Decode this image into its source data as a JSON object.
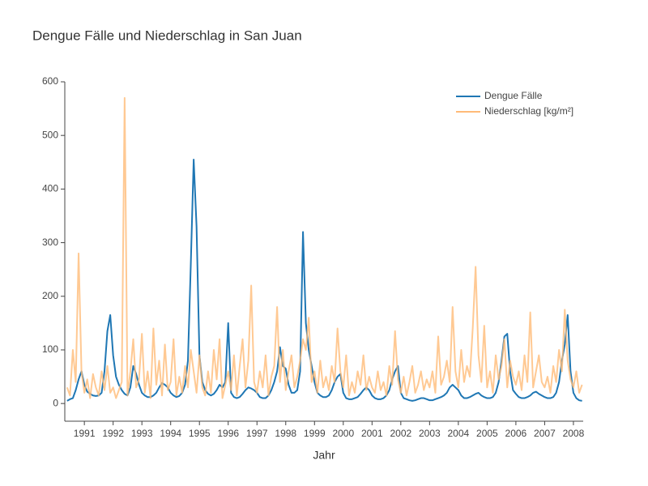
{
  "chart_data": {
    "type": "line",
    "title": "Dengue Fälle und Niederschlag in San Juan",
    "x_label": "Jahr",
    "xlim": [
      1990.32,
      2008.34
    ],
    "xticks": [
      1991,
      1992,
      1993,
      1994,
      1995,
      1996,
      1997,
      1998,
      1999,
      2000,
      2001,
      2002,
      2003,
      2004,
      2005,
      2006,
      2007,
      2008
    ],
    "ylim": [
      -33,
      600
    ],
    "yticks": [
      0,
      100,
      200,
      300,
      400,
      500,
      600
    ],
    "grid": false,
    "legend": "top-right",
    "x": [
      1990.4,
      1990.5,
      1990.6,
      1990.7,
      1990.8,
      1990.9,
      1991.0,
      1991.1,
      1991.2,
      1991.3,
      1991.4,
      1991.5,
      1991.6,
      1991.7,
      1991.8,
      1991.9,
      1992.0,
      1992.1,
      1992.2,
      1992.3,
      1992.4,
      1992.5,
      1992.6,
      1992.7,
      1992.8,
      1992.9,
      1993.0,
      1993.1,
      1993.2,
      1993.3,
      1993.4,
      1993.5,
      1993.6,
      1993.7,
      1993.8,
      1993.9,
      1994.0,
      1994.1,
      1994.2,
      1994.3,
      1994.4,
      1994.5,
      1994.6,
      1994.7,
      1994.8,
      1994.9,
      1995.0,
      1995.1,
      1995.2,
      1995.3,
      1995.4,
      1995.5,
      1995.6,
      1995.7,
      1995.8,
      1995.9,
      1996.0,
      1996.1,
      1996.2,
      1996.3,
      1996.4,
      1996.5,
      1996.6,
      1996.7,
      1996.8,
      1996.9,
      1997.0,
      1997.1,
      1997.2,
      1997.3,
      1997.4,
      1997.5,
      1997.6,
      1997.7,
      1997.8,
      1997.9,
      1998.0,
      1998.1,
      1998.2,
      1998.3,
      1998.4,
      1998.5,
      1998.6,
      1998.7,
      1998.8,
      1998.9,
      1999.0,
      1999.1,
      1999.2,
      1999.3,
      1999.4,
      1999.5,
      1999.6,
      1999.7,
      1999.8,
      1999.9,
      2000.0,
      2000.1,
      2000.2,
      2000.3,
      2000.4,
      2000.5,
      2000.6,
      2000.7,
      2000.8,
      2000.9,
      2001.0,
      2001.1,
      2001.2,
      2001.3,
      2001.4,
      2001.5,
      2001.6,
      2001.7,
      2001.8,
      2001.9,
      2002.0,
      2002.1,
      2002.2,
      2002.3,
      2002.4,
      2002.5,
      2002.6,
      2002.7,
      2002.8,
      2002.9,
      2003.0,
      2003.1,
      2003.2,
      2003.3,
      2003.4,
      2003.5,
      2003.6,
      2003.7,
      2003.8,
      2003.9,
      2004.0,
      2004.1,
      2004.2,
      2004.3,
      2004.4,
      2004.5,
      2004.6,
      2004.7,
      2004.8,
      2004.9,
      2005.0,
      2005.1,
      2005.2,
      2005.3,
      2005.4,
      2005.5,
      2005.6,
      2005.7,
      2005.8,
      2005.9,
      2006.0,
      2006.1,
      2006.2,
      2006.3,
      2006.4,
      2006.5,
      2006.6,
      2006.7,
      2006.8,
      2006.9,
      2007.0,
      2007.1,
      2007.2,
      2007.3,
      2007.4,
      2007.5,
      2007.6,
      2007.7,
      2007.8,
      2007.9,
      2008.0,
      2008.1,
      2008.2,
      2008.3
    ],
    "series": [
      {
        "name": "Dengue Fälle",
        "color": "#1f77b4",
        "values": [
          5,
          8,
          10,
          25,
          45,
          60,
          35,
          22,
          18,
          15,
          14,
          15,
          20,
          60,
          135,
          165,
          90,
          50,
          35,
          25,
          18,
          15,
          30,
          70,
          55,
          35,
          20,
          15,
          12,
          12,
          15,
          20,
          30,
          38,
          35,
          30,
          20,
          15,
          12,
          14,
          20,
          35,
          80,
          260,
          455,
          330,
          90,
          40,
          25,
          18,
          15,
          18,
          25,
          35,
          30,
          40,
          150,
          20,
          12,
          10,
          12,
          18,
          25,
          30,
          28,
          25,
          20,
          12,
          10,
          10,
          15,
          25,
          40,
          60,
          105,
          70,
          65,
          35,
          20,
          20,
          25,
          60,
          320,
          150,
          100,
          70,
          40,
          20,
          15,
          12,
          12,
          15,
          25,
          40,
          50,
          55,
          20,
          10,
          8,
          8,
          10,
          12,
          18,
          25,
          30,
          25,
          15,
          10,
          8,
          8,
          10,
          15,
          25,
          45,
          60,
          70,
          20,
          10,
          8,
          6,
          5,
          6,
          8,
          10,
          10,
          8,
          6,
          6,
          8,
          10,
          12,
          15,
          20,
          30,
          35,
          30,
          25,
          15,
          10,
          10,
          12,
          15,
          18,
          20,
          15,
          12,
          10,
          10,
          12,
          20,
          40,
          80,
          125,
          130,
          60,
          25,
          18,
          12,
          10,
          10,
          12,
          15,
          20,
          22,
          18,
          15,
          12,
          10,
          10,
          12,
          20,
          40,
          80,
          110,
          165,
          60,
          20,
          10,
          6,
          5
        ]
      },
      {
        "name": "Niederschlag [kg/m²]",
        "color": "#ffbb78",
        "values": [
          30,
          15,
          100,
          40,
          280,
          60,
          20,
          45,
          10,
          55,
          30,
          15,
          60,
          25,
          70,
          20,
          30,
          10,
          25,
          40,
          570,
          15,
          60,
          120,
          30,
          45,
          130,
          20,
          60,
          10,
          140,
          35,
          80,
          15,
          110,
          25,
          40,
          120,
          15,
          50,
          20,
          70,
          30,
          100,
          60,
          20,
          90,
          30,
          15,
          60,
          20,
          100,
          45,
          120,
          10,
          35,
          60,
          25,
          90,
          15,
          70,
          120,
          30,
          80,
          220,
          40,
          20,
          60,
          30,
          90,
          15,
          50,
          70,
          180,
          40,
          100,
          25,
          60,
          90,
          30,
          50,
          80,
          120,
          100,
          160,
          40,
          60,
          20,
          80,
          30,
          50,
          25,
          70,
          40,
          140,
          60,
          30,
          90,
          15,
          40,
          20,
          60,
          35,
          90,
          25,
          50,
          30,
          20,
          60,
          25,
          40,
          15,
          70,
          35,
          135,
          45,
          20,
          50,
          15,
          40,
          70,
          20,
          35,
          60,
          25,
          45,
          30,
          60,
          20,
          125,
          35,
          50,
          80,
          40,
          180,
          60,
          30,
          100,
          40,
          70,
          50,
          140,
          255,
          90,
          40,
          145,
          30,
          60,
          20,
          90,
          45,
          70,
          120,
          30,
          80,
          50,
          35,
          60,
          25,
          90,
          40,
          170,
          30,
          60,
          90,
          40,
          30,
          50,
          20,
          70,
          40,
          100,
          60,
          175,
          80,
          45,
          30,
          60,
          20,
          35
        ]
      }
    ]
  }
}
